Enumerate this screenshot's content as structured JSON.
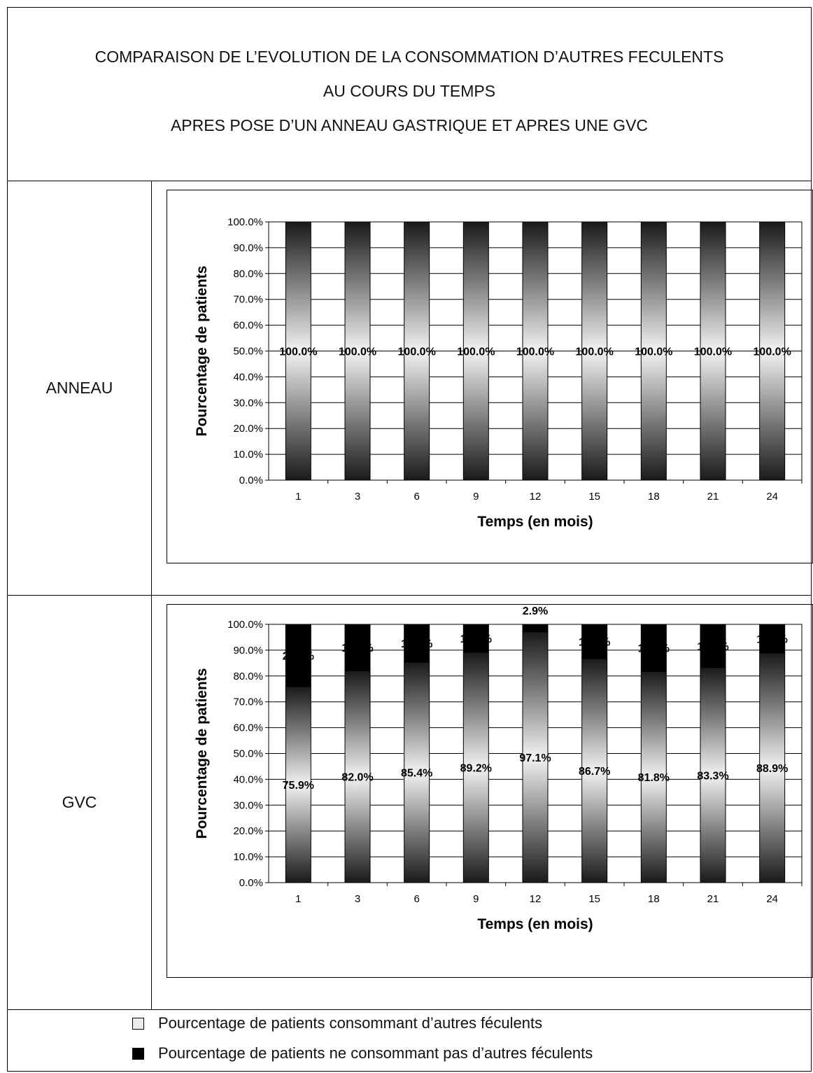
{
  "title": {
    "lines": [
      "COMPARAISON DE L’EVOLUTION DE LA CONSOMMATION D’AUTRES FECULENTS",
      "AU COURS DU TEMPS",
      "APRES POSE D’UN ANNEAU GASTRIQUE ET APRES UNE GVC"
    ]
  },
  "rows": [
    {
      "label": "ANNEAU"
    },
    {
      "label": "GVC"
    }
  ],
  "legend": [
    {
      "label": "Pourcentage de patients consommant d’autres féculents",
      "color": "#ececec"
    },
    {
      "label": "Pourcentage de patients ne consommant pas d’autres féculents",
      "color": "#000000"
    }
  ],
  "chart_data": [
    {
      "type": "bar",
      "stacked": true,
      "xlabel": "Temps (en mois)",
      "ylabel": "Pourcentage de patients",
      "ylim": [
        0,
        100
      ],
      "yticks": [
        "0.0%",
        "10.0%",
        "20.0%",
        "30.0%",
        "40.0%",
        "50.0%",
        "60.0%",
        "70.0%",
        "80.0%",
        "90.0%",
        "100.0%"
      ],
      "grid": true,
      "categories": [
        "1",
        "3",
        "6",
        "9",
        "12",
        "15",
        "18",
        "21",
        "24"
      ],
      "series": [
        {
          "name": "Pourcentage de patients consommant d’autres féculents",
          "values": [
            100,
            100,
            100,
            100,
            100,
            100,
            100,
            100,
            100
          ],
          "labels": [
            "100.0%",
            "100.0%",
            "100.0%",
            "100.0%",
            "100.0%",
            "100.0%",
            "100.0%",
            "100.0%",
            "100.0%"
          ]
        },
        {
          "name": "Pourcentage de patients ne consommant pas d’autres féculents",
          "values": [
            0,
            0,
            0,
            0,
            0,
            0,
            0,
            0,
            0
          ],
          "labels": [
            "",
            "",
            "",
            "",
            "",
            "",
            "",
            "",
            ""
          ]
        }
      ]
    },
    {
      "type": "bar",
      "stacked": true,
      "xlabel": "Temps (en mois)",
      "ylabel": "Pourcentage de patients",
      "ylim": [
        0,
        100
      ],
      "yticks": [
        "0.0%",
        "10.0%",
        "20.0%",
        "30.0%",
        "40.0%",
        "50.0%",
        "60.0%",
        "70.0%",
        "80.0%",
        "90.0%",
        "100.0%"
      ],
      "grid": true,
      "categories": [
        "1",
        "3",
        "6",
        "9",
        "12",
        "15",
        "18",
        "21",
        "24"
      ],
      "series": [
        {
          "name": "Pourcentage de patients consommant d’autres féculents",
          "values": [
            75.9,
            82.0,
            85.4,
            89.2,
            97.1,
            86.7,
            81.8,
            83.3,
            88.9
          ],
          "labels": [
            "75.9%",
            "82.0%",
            "85.4%",
            "89.2%",
            "97.1%",
            "86.7%",
            "81.8%",
            "83.3%",
            "88.9%"
          ]
        },
        {
          "name": "Pourcentage de patients ne consommant pas d’autres féculents",
          "values": [
            24.1,
            18.0,
            14.6,
            10.8,
            2.9,
            13.3,
            18.2,
            16.7,
            11.1
          ],
          "labels": [
            "24.1%",
            "18.0%",
            "14.6%",
            "10.8%",
            "2.9%",
            "13.3%",
            "18.2%",
            "16.7%",
            "11.1%"
          ]
        }
      ]
    }
  ]
}
